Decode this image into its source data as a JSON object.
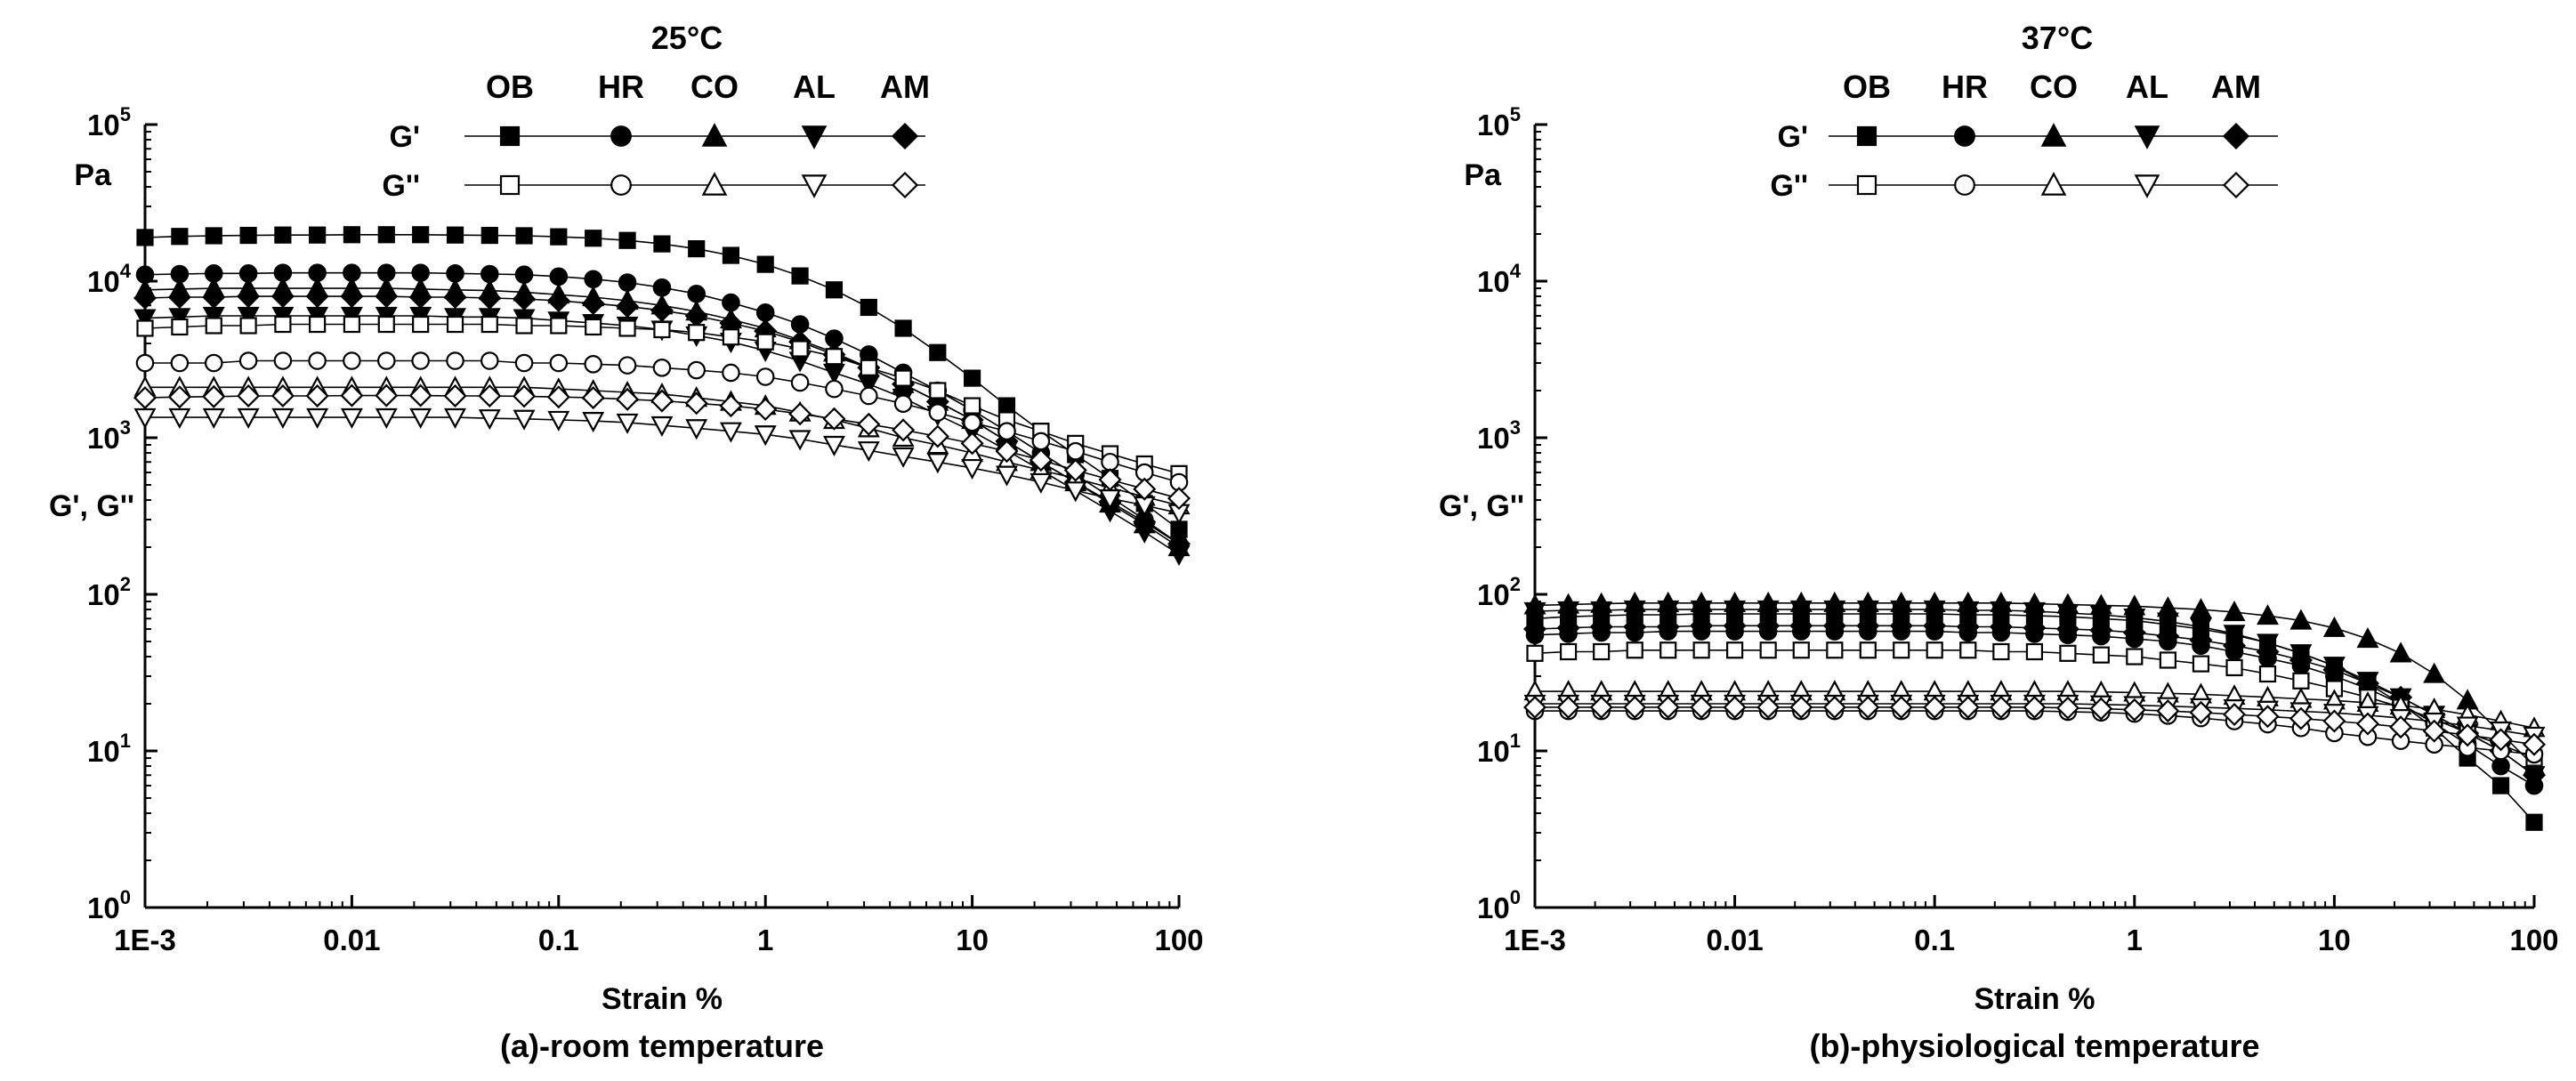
{
  "chart_data": [
    {
      "type": "line",
      "panel_id": "a",
      "temperature_label": "25°C",
      "subtitle": "(a)-room temperature",
      "xlabel": "Strain %",
      "ylabel": "G', G''",
      "yunit": "Pa",
      "xscale": "log",
      "yscale": "log",
      "xlim": [
        0.001,
        100
      ],
      "ylim": [
        1,
        100000
      ],
      "xtick_values": [
        0.001,
        0.01,
        0.1,
        1,
        10,
        100
      ],
      "xtick_labels": [
        "1E-3",
        "0.01",
        "0.1",
        "1",
        "10",
        "100"
      ],
      "ytick_values": [
        1,
        10,
        100,
        1000,
        10000,
        100000
      ],
      "ytick_bases": [
        "10",
        "10",
        "10",
        "10",
        "10",
        "10"
      ],
      "ytick_exponents": [
        "0",
        "1",
        "2",
        "3",
        "4",
        "5"
      ],
      "legend": {
        "position": "top-center",
        "columns": [
          "OB",
          "HR",
          "CO",
          "AL",
          "AM"
        ],
        "rows": [
          "G'",
          "G''"
        ]
      },
      "x": [
        0.001,
        0.00147,
        0.00215,
        0.00316,
        0.00464,
        0.00681,
        0.01,
        0.0147,
        0.0215,
        0.0316,
        0.0464,
        0.0681,
        0.1,
        0.147,
        0.215,
        0.316,
        0.464,
        0.681,
        1,
        1.47,
        2.15,
        3.16,
        4.64,
        6.81,
        10,
        14.7,
        21.5,
        31.6,
        46.4,
        68.1,
        100
      ],
      "series": [
        {
          "name": "OB G'",
          "sample": "OB",
          "modulus": "G'",
          "marker": "square",
          "filled": true,
          "values": [
            19000,
            19300,
            19500,
            19600,
            19700,
            19700,
            19800,
            19800,
            19800,
            19700,
            19600,
            19500,
            19200,
            18800,
            18200,
            17300,
            16100,
            14600,
            12800,
            10800,
            8800,
            6800,
            5000,
            3500,
            2400,
            1600,
            1100,
            780,
            550,
            380,
            260
          ]
        },
        {
          "name": "HR G'",
          "sample": "HR",
          "modulus": "G'",
          "marker": "circle",
          "filled": true,
          "values": [
            11000,
            11100,
            11200,
            11200,
            11300,
            11300,
            11300,
            11300,
            11300,
            11200,
            11100,
            11000,
            10700,
            10300,
            9800,
            9100,
            8300,
            7300,
            6300,
            5300,
            4300,
            3400,
            2600,
            2000,
            1500,
            1100,
            800,
            580,
            420,
            300,
            210
          ]
        },
        {
          "name": "CO G'",
          "sample": "CO",
          "modulus": "G'",
          "marker": "triangle-up",
          "filled": true,
          "values": [
            8800,
            8900,
            9000,
            9000,
            9000,
            9000,
            9000,
            9000,
            8900,
            8800,
            8700,
            8500,
            8200,
            7900,
            7500,
            7000,
            6400,
            5700,
            5000,
            4200,
            3500,
            2800,
            2200,
            1700,
            1300,
            950,
            700,
            520,
            380,
            280,
            200
          ]
        },
        {
          "name": "AL G'",
          "sample": "AL",
          "modulus": "G'",
          "marker": "triangle-down",
          "filled": true,
          "values": [
            5800,
            5900,
            6000,
            6000,
            6000,
            6000,
            6000,
            6000,
            6000,
            5900,
            5900,
            5800,
            5600,
            5400,
            5200,
            4900,
            4500,
            4100,
            3600,
            3100,
            2600,
            2200,
            1800,
            1400,
            1100,
            830,
            620,
            460,
            340,
            250,
            180
          ]
        },
        {
          "name": "AM G'",
          "sample": "AM",
          "modulus": "G'",
          "marker": "diamond",
          "filled": true,
          "values": [
            7800,
            7900,
            7900,
            8000,
            8000,
            8000,
            8000,
            8000,
            7900,
            7900,
            7800,
            7700,
            7500,
            7200,
            6900,
            6500,
            6000,
            5400,
            4800,
            4100,
            3400,
            2800,
            2200,
            1700,
            1300,
            950,
            700,
            520,
            390,
            290,
            210
          ]
        },
        {
          "name": "OB G''",
          "sample": "OB",
          "modulus": "G''",
          "marker": "square",
          "filled": false,
          "values": [
            5000,
            5100,
            5200,
            5200,
            5300,
            5300,
            5300,
            5300,
            5300,
            5300,
            5300,
            5200,
            5200,
            5100,
            5000,
            4900,
            4700,
            4400,
            4100,
            3700,
            3300,
            2800,
            2400,
            2000,
            1600,
            1300,
            1100,
            920,
            790,
            680,
            590
          ]
        },
        {
          "name": "HR G''",
          "sample": "HR",
          "modulus": "G''",
          "marker": "circle",
          "filled": false,
          "values": [
            3000,
            3000,
            3000,
            3100,
            3100,
            3100,
            3100,
            3100,
            3100,
            3100,
            3100,
            3000,
            3000,
            2950,
            2900,
            2800,
            2700,
            2600,
            2450,
            2250,
            2050,
            1850,
            1650,
            1450,
            1250,
            1100,
            950,
            820,
            700,
            600,
            520
          ]
        },
        {
          "name": "CO G''",
          "sample": "CO",
          "modulus": "G''",
          "marker": "triangle-up",
          "filled": false,
          "values": [
            2100,
            2100,
            2100,
            2100,
            2100,
            2100,
            2100,
            2100,
            2100,
            2100,
            2100,
            2100,
            2050,
            2000,
            1950,
            1900,
            1800,
            1700,
            1600,
            1450,
            1300,
            1150,
            1000,
            900,
            800,
            700,
            620,
            550,
            480,
            420,
            370
          ]
        },
        {
          "name": "AL G''",
          "sample": "AL",
          "modulus": "G''",
          "marker": "triangle-down",
          "filled": false,
          "values": [
            1350,
            1350,
            1350,
            1350,
            1350,
            1350,
            1350,
            1350,
            1350,
            1350,
            1330,
            1320,
            1300,
            1280,
            1250,
            1200,
            1150,
            1100,
            1050,
            980,
            900,
            830,
            760,
            700,
            640,
            580,
            520,
            460,
            410,
            370,
            330
          ]
        },
        {
          "name": "AM G''",
          "sample": "AM",
          "modulus": "G''",
          "marker": "diamond",
          "filled": false,
          "values": [
            1800,
            1820,
            1830,
            1850,
            1850,
            1850,
            1860,
            1860,
            1860,
            1850,
            1850,
            1840,
            1820,
            1800,
            1760,
            1720,
            1660,
            1600,
            1520,
            1420,
            1320,
            1220,
            1120,
            1020,
            920,
            820,
            720,
            620,
            540,
            470,
            410
          ]
        }
      ]
    },
    {
      "type": "line",
      "panel_id": "b",
      "temperature_label": "37°C",
      "subtitle": "(b)-physiological temperature",
      "xlabel": "Strain %",
      "ylabel": "G', G''",
      "yunit": "Pa",
      "xscale": "log",
      "yscale": "log",
      "xlim": [
        0.001,
        100
      ],
      "ylim": [
        1,
        100000
      ],
      "xtick_values": [
        0.001,
        0.01,
        0.1,
        1,
        10,
        100
      ],
      "xtick_labels": [
        "1E-3",
        "0.01",
        "0.1",
        "1",
        "10",
        "100"
      ],
      "ytick_values": [
        1,
        10,
        100,
        1000,
        10000,
        100000
      ],
      "ytick_bases": [
        "10",
        "10",
        "10",
        "10",
        "10",
        "10"
      ],
      "ytick_exponents": [
        "0",
        "1",
        "2",
        "3",
        "4",
        "5"
      ],
      "legend": {
        "position": "top-center",
        "columns": [
          "OB",
          "HR",
          "CO",
          "AL",
          "AM"
        ],
        "rows": [
          "G'",
          "G''"
        ]
      },
      "x": [
        0.001,
        0.00147,
        0.00215,
        0.00316,
        0.00464,
        0.00681,
        0.01,
        0.0147,
        0.0215,
        0.0316,
        0.0464,
        0.0681,
        0.1,
        0.147,
        0.215,
        0.316,
        0.464,
        0.681,
        1,
        1.47,
        2.15,
        3.16,
        4.64,
        6.81,
        10,
        14.7,
        21.5,
        31.6,
        46.4,
        68.1,
        100
      ],
      "series": [
        {
          "name": "OB G'",
          "sample": "OB",
          "modulus": "G'",
          "marker": "square",
          "filled": true,
          "values": [
            70,
            72,
            73,
            74,
            74,
            75,
            75,
            75,
            75,
            75,
            75,
            75,
            75,
            74,
            74,
            73,
            72,
            70,
            68,
            64,
            60,
            55,
            49,
            42,
            35,
            27,
            20,
            14,
            9,
            6,
            3.5
          ]
        },
        {
          "name": "HR G'",
          "sample": "HR",
          "modulus": "G'",
          "marker": "circle",
          "filled": true,
          "values": [
            55,
            56,
            57,
            57,
            58,
            58,
            58,
            58,
            58,
            58,
            58,
            58,
            58,
            57,
            57,
            56,
            55,
            54,
            52,
            50,
            47,
            43,
            39,
            35,
            30,
            25,
            20,
            15,
            11,
            8,
            6
          ]
        },
        {
          "name": "CO G'",
          "sample": "CO",
          "modulus": "G'",
          "marker": "triangle-up",
          "filled": true,
          "values": [
            85,
            86,
            87,
            88,
            88,
            88,
            88,
            88,
            88,
            88,
            88,
            88,
            88,
            88,
            88,
            87,
            86,
            85,
            84,
            82,
            80,
            77,
            73,
            68,
            61,
            52,
            42,
            31,
            21,
            13,
            8
          ]
        },
        {
          "name": "AL G'",
          "sample": "AL",
          "modulus": "G'",
          "marker": "triangle-down",
          "filled": true,
          "values": [
            78,
            79,
            79,
            80,
            80,
            80,
            80,
            80,
            80,
            80,
            80,
            80,
            80,
            79,
            79,
            78,
            76,
            74,
            71,
            67,
            62,
            56,
            49,
            42,
            35,
            28,
            22,
            17,
            13,
            10,
            7
          ]
        },
        {
          "name": "AM G'",
          "sample": "AM",
          "modulus": "G'",
          "marker": "diamond",
          "filled": true,
          "values": [
            60,
            61,
            62,
            62,
            62,
            63,
            63,
            63,
            63,
            63,
            63,
            63,
            63,
            62,
            62,
            61,
            60,
            59,
            57,
            54,
            51,
            47,
            43,
            38,
            33,
            27,
            22,
            17,
            13,
            10,
            7
          ]
        },
        {
          "name": "OB G''",
          "sample": "OB",
          "modulus": "G''",
          "marker": "square",
          "filled": false,
          "values": [
            42,
            43,
            43,
            44,
            44,
            44,
            44,
            44,
            44,
            44,
            44,
            44,
            44,
            44,
            43,
            43,
            42,
            41,
            40,
            38,
            36,
            34,
            31,
            28,
            25,
            22,
            19,
            16,
            13,
            11,
            9
          ]
        },
        {
          "name": "HR G''",
          "sample": "HR",
          "modulus": "G''",
          "marker": "circle",
          "filled": false,
          "values": [
            18,
            18,
            18,
            18,
            18,
            18,
            18,
            18,
            18,
            18,
            18,
            18,
            18,
            18,
            18,
            18,
            17.8,
            17.6,
            17.3,
            16.8,
            16.2,
            15.5,
            14.8,
            14,
            13,
            12.3,
            11.6,
            11,
            10.5,
            10,
            9.5
          ]
        },
        {
          "name": "CO G''",
          "sample": "CO",
          "modulus": "G''",
          "marker": "triangle-up",
          "filled": false,
          "values": [
            24,
            24,
            24,
            24,
            24,
            24,
            24,
            24,
            24,
            24,
            24,
            24,
            24,
            24,
            24,
            24,
            24,
            23.8,
            23.6,
            23.3,
            23,
            22.5,
            22,
            21.5,
            21,
            20.3,
            19.5,
            18.5,
            17,
            15.5,
            14
          ]
        },
        {
          "name": "AL G''",
          "sample": "AL",
          "modulus": "G''",
          "marker": "triangle-down",
          "filled": false,
          "values": [
            20,
            20,
            20,
            20,
            20,
            20,
            20,
            20,
            20,
            20,
            20,
            20,
            20,
            20,
            20,
            20,
            20,
            19.8,
            19.6,
            19.3,
            19,
            18.7,
            18.3,
            17.9,
            17.5,
            16.9,
            16.2,
            15.4,
            14.5,
            13.5,
            12.5
          ]
        },
        {
          "name": "AM G''",
          "sample": "AM",
          "modulus": "G''",
          "marker": "diamond",
          "filled": false,
          "values": [
            19,
            19,
            19,
            19,
            19,
            19,
            19,
            19,
            19,
            19,
            19,
            19,
            19,
            19,
            19,
            19,
            18.8,
            18.6,
            18.3,
            18,
            17.6,
            17.1,
            16.6,
            16.1,
            15.5,
            14.9,
            14.2,
            13.4,
            12.6,
            11.8,
            11
          ]
        }
      ]
    }
  ]
}
